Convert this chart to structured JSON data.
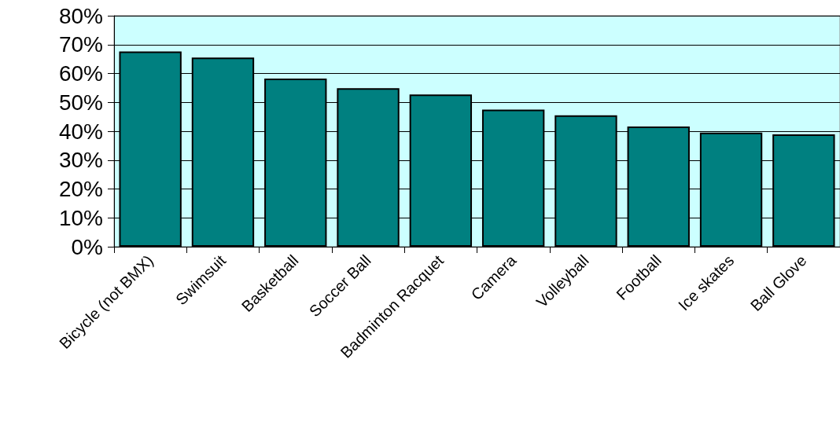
{
  "chart_data": {
    "type": "bar",
    "categories": [
      "Bicycle (not BMX)",
      "Swimsuit",
      "Basketball",
      "Soccer Ball",
      "Badminton Racquet",
      "Camera",
      "Volleyball",
      "Football",
      "Ice skates",
      "Ball Glove"
    ],
    "values": [
      67.6,
      65.5,
      58.2,
      54.9,
      52.7,
      47.5,
      45.5,
      41.6,
      39.5,
      38.9
    ],
    "color": "#008080",
    "ylim": [
      0,
      80
    ],
    "yticks": [
      {
        "value": 0,
        "label": "0%"
      },
      {
        "value": 10,
        "label": "10%"
      },
      {
        "value": 20,
        "label": "20%"
      },
      {
        "value": 30,
        "label": "30%"
      },
      {
        "value": 40,
        "label": "40%"
      },
      {
        "value": 50,
        "label": "50%"
      },
      {
        "value": 60,
        "label": "60%"
      },
      {
        "value": 70,
        "label": "70%"
      },
      {
        "value": 80,
        "label": "80%"
      }
    ],
    "grid": "y"
  }
}
